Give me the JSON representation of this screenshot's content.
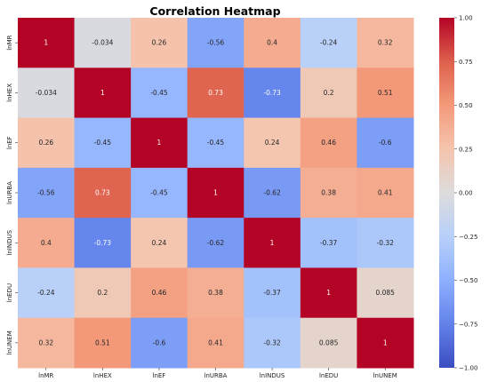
{
  "chart_data": {
    "type": "heatmap",
    "title": "Correlation Heatmap",
    "row_labels": [
      "lnMR",
      "lnHEX",
      "lnEF",
      "lnURBA",
      "lnINDUS",
      "lnEDU",
      "lnUNEM"
    ],
    "col_labels": [
      "lnMR",
      "lnHEX",
      "lnEF",
      "lnURBA",
      "lnINDUS",
      "lnEDU",
      "lnUNEM"
    ],
    "values": [
      [
        1,
        -0.034,
        0.26,
        -0.56,
        0.4,
        -0.24,
        0.32
      ],
      [
        -0.034,
        1,
        -0.45,
        0.73,
        -0.73,
        0.2,
        0.51
      ],
      [
        0.26,
        -0.45,
        1,
        -0.45,
        0.24,
        0.46,
        -0.6
      ],
      [
        -0.56,
        0.73,
        -0.45,
        1,
        -0.62,
        0.38,
        0.41
      ],
      [
        0.4,
        -0.73,
        0.24,
        -0.62,
        1,
        -0.37,
        -0.32
      ],
      [
        -0.24,
        0.2,
        0.46,
        0.38,
        -0.37,
        1,
        0.085
      ],
      [
        0.32,
        0.51,
        -0.6,
        0.41,
        -0.32,
        0.085,
        1
      ]
    ],
    "value_labels": [
      [
        "1",
        "-0.034",
        "0.26",
        "-0.56",
        "0.4",
        "-0.24",
        "0.32"
      ],
      [
        "-0.034",
        "1",
        "-0.45",
        "0.73",
        "-0.73",
        "0.2",
        "0.51"
      ],
      [
        "0.26",
        "-0.45",
        "1",
        "-0.45",
        "0.24",
        "0.46",
        "-0.6"
      ],
      [
        "-0.56",
        "0.73",
        "-0.45",
        "1",
        "-0.62",
        "0.38",
        "0.41"
      ],
      [
        "0.4",
        "-0.73",
        "0.24",
        "-0.62",
        "1",
        "-0.37",
        "-0.32"
      ],
      [
        "-0.24",
        "0.2",
        "0.46",
        "0.38",
        "-0.37",
        "1",
        "0.085"
      ],
      [
        "0.32",
        "0.51",
        "-0.6",
        "0.41",
        "-0.32",
        "0.085",
        "1"
      ]
    ],
    "colorbar": {
      "range": [
        -1.0,
        1.0
      ],
      "ticks": [
        1.0,
        0.75,
        0.5,
        0.25,
        0.0,
        -0.25,
        -0.5,
        -0.75,
        -1.0
      ],
      "tick_labels": [
        "1.00",
        "0.75",
        "0.50",
        "0.25",
        "0.00",
        "−0.25",
        "−0.50",
        "−0.75",
        "−1.00"
      ],
      "colormap": "coolwarm",
      "low_color": "#3b4cc0",
      "mid_color": "#dddcdc",
      "high_color": "#b40426"
    }
  }
}
